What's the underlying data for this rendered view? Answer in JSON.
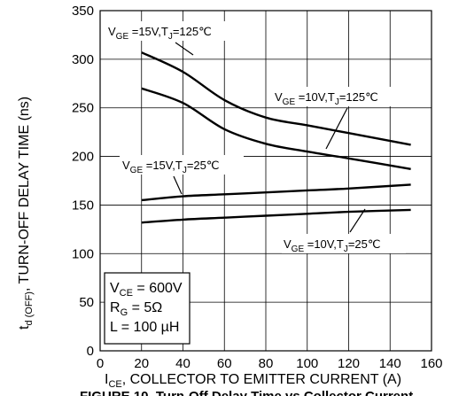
{
  "chart_data": {
    "type": "line",
    "title": "",
    "caption": "FIGURE 10. Turn-Off Delay Time vs Collector Current",
    "xlabel_main": "I",
    "xlabel_sub": "CE",
    "xlabel_rest": ", COLLECTOR TO EMITTER CURRENT (A)",
    "ylabel_main": "t",
    "ylabel_sub": "d (OFF)",
    "ylabel_rest": ", TURN-OFF DELAY TIME (ns)",
    "xlim": [
      0,
      160
    ],
    "ylim": [
      0,
      350
    ],
    "xticks": [
      0,
      20,
      40,
      60,
      80,
      100,
      120,
      140,
      160
    ],
    "yticks": [
      0,
      50,
      100,
      150,
      200,
      250,
      300,
      350
    ],
    "grid": true,
    "series": [
      {
        "name": "V_GE = 15V, T_J = 125°C",
        "x": [
          20,
          40,
          60,
          80,
          100,
          120,
          150
        ],
        "y": [
          307,
          287,
          258,
          240,
          232,
          224,
          212
        ]
      },
      {
        "name": "V_GE = 10V, T_J = 125°C",
        "x": [
          20,
          40,
          60,
          80,
          100,
          120,
          150
        ],
        "y": [
          270,
          255,
          228,
          213,
          205,
          198,
          187
        ]
      },
      {
        "name": "V_GE = 15V, T_J = 25°C",
        "x": [
          20,
          40,
          60,
          80,
          100,
          120,
          150
        ],
        "y": [
          155,
          159,
          161,
          163,
          165,
          167,
          171
        ]
      },
      {
        "name": "V_GE = 10V, T_J = 25°C",
        "x": [
          20,
          40,
          60,
          80,
          100,
          120,
          150
        ],
        "y": [
          132,
          135,
          137,
          139,
          141,
          143,
          145
        ]
      }
    ],
    "conditions": [
      "V_CE = 600V",
      "R_G = 5Ω",
      "L = 100 µH"
    ]
  },
  "labels": {
    "vge": "V",
    "ge": "GE",
    "tj": "T",
    "j": "J",
    "s1_v": " =15V,",
    "s1_t": "=125℃",
    "s2_v": " =10V,",
    "s2_t": "=125℃",
    "s3_v": " =15V,",
    "s3_t": "=25℃",
    "s4_v": " =10V,",
    "s4_t": "=25℃"
  },
  "box": {
    "vce_main": "V",
    "vce_sub": "CE",
    "vce_rest": " = 600V",
    "rg_main": "R",
    "rg_sub": "G",
    "rg_rest": " = 5Ω",
    "l_line": "L = 100 µH"
  }
}
